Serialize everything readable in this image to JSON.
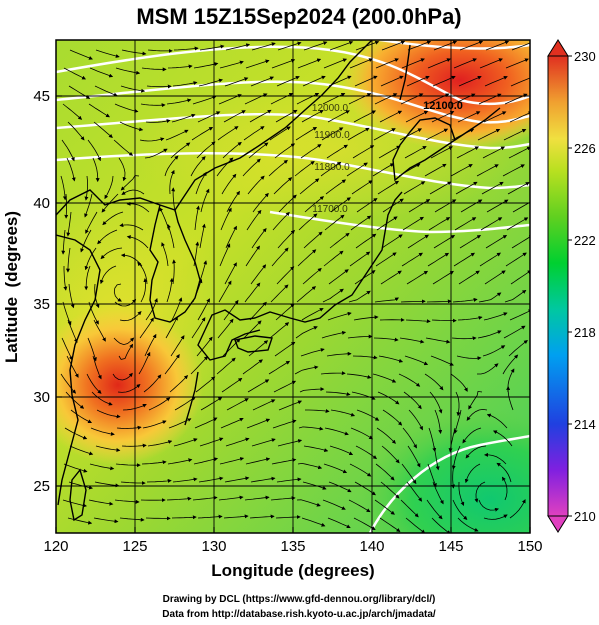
{
  "title": "MSM 15Z15Sep2024 (200.0hPa)",
  "xlabel": "Longitude (degrees)",
  "ylabel": "Latitude  (degrees)",
  "x_ticks": [
    "120",
    "125",
    "130",
    "135",
    "140",
    "145",
    "150"
  ],
  "y_ticks": [
    "25",
    "30",
    "35",
    "40",
    "45"
  ],
  "colorbar": {
    "ticks": [
      "230",
      "226",
      "222",
      "218",
      "214",
      "210"
    ],
    "min": 210,
    "max": 230,
    "colors": [
      "#e040c0",
      "#8020e0",
      "#2040e0",
      "#00a0f0",
      "#00c8a0",
      "#00d030",
      "#60d020",
      "#b8e020",
      "#f0e040",
      "#f0a030",
      "#e05020",
      "#d02020"
    ]
  },
  "contour_labels": [
    "12100.0",
    "12000.0",
    "11900.0",
    "11800.0",
    "11700.0"
  ],
  "credit": {
    "line1": "Drawing by DCL (https://www.gfd-dennou.org/library/dcl/)",
    "line2": "Data from http://database.rish.kyoto-u.ac.jp/arch/jmadata/"
  },
  "map_data": {
    "lon_range": [
      120,
      150
    ],
    "lat_range": [
      22.5,
      48
    ],
    "warm_cores": [
      {
        "lon": 124,
        "lat": 30.5,
        "value": 228
      },
      {
        "lon": 146,
        "lat": 46.5,
        "value": 229
      }
    ],
    "cool_core": {
      "lon": 147,
      "lat": 25,
      "value": 222
    }
  }
}
